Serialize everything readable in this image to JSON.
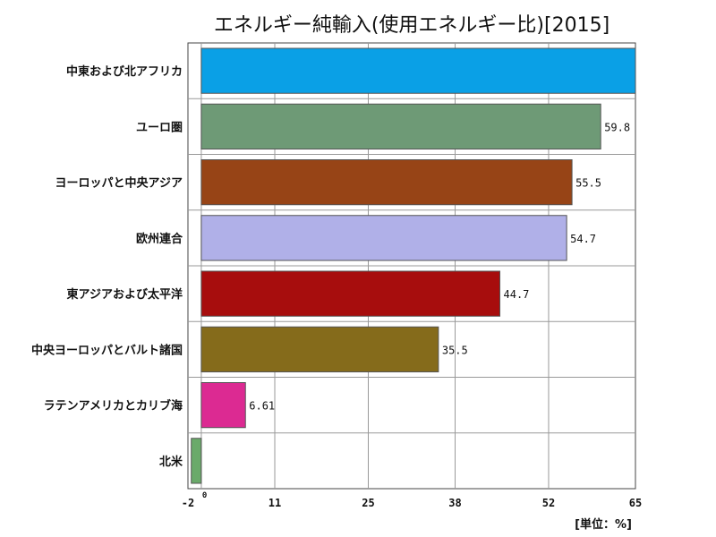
{
  "chart_data": {
    "type": "bar",
    "orientation": "horizontal",
    "title": "エネルギー純輸入(使用エネルギー比)[2015]",
    "unit": "[単位：%]",
    "categories": [
      "中東および北アフリカ",
      "ユーロ圏",
      "ヨーロッパと中央アジア",
      "欧州連合",
      "東アジアおよび太平洋",
      "中央ヨーロッパとバルト諸国",
      "ラテンアメリカとカリブ海",
      "北米"
    ],
    "values": [
      65,
      59.8,
      55.5,
      54.7,
      44.7,
      35.5,
      6.61,
      -1.5
    ],
    "value_labels": [
      "",
      "59.8",
      "55.5",
      "54.7",
      "44.7",
      "35.5",
      "6.61",
      ""
    ],
    "colors": [
      "#0aa0e6",
      "#6e9a76",
      "#974416",
      "#b0b0e8",
      "#a70d0d",
      "#856b1b",
      "#dc2a92",
      "#6aaa6a"
    ],
    "xlim": [
      -2,
      65
    ],
    "xticks": [
      "-2",
      "0",
      "11",
      "25",
      "38",
      "52",
      "65"
    ],
    "xtick_values": [
      -2,
      0,
      11,
      25,
      38,
      52,
      65
    ],
    "grid": true
  }
}
